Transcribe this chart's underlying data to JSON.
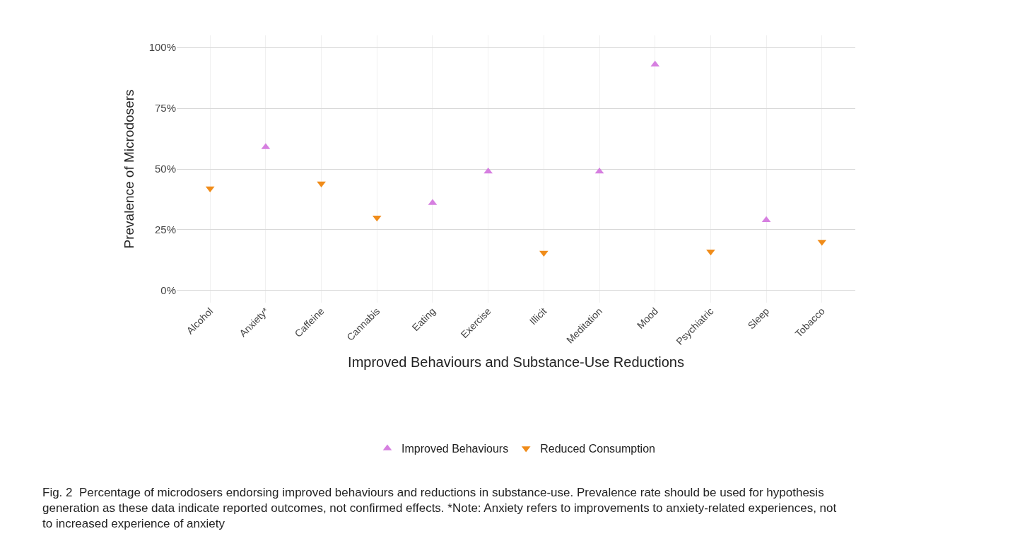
{
  "chart_data": {
    "type": "scatter",
    "xlabel": "Improved Behaviours and Substance-Use Reductions",
    "ylabel": "Prevalence of Microdosers",
    "categories": [
      "Alcohol",
      "Anxiety*",
      "Caffeine",
      "Cannabis",
      "Eating",
      "Exercise",
      "Illicit",
      "Meditation",
      "Mood",
      "Psychiatric",
      "Sleep",
      "Tobacco"
    ],
    "series": [
      {
        "name": "Improved Behaviours",
        "color": "#d67fe0",
        "marker": "triangle",
        "values": [
          null,
          59,
          null,
          null,
          36,
          49,
          null,
          49,
          93,
          null,
          29,
          null
        ]
      },
      {
        "name": "Reduced Consumption",
        "color": "#f08c1a",
        "marker": "triangle-down",
        "values": [
          42,
          null,
          44,
          30,
          null,
          null,
          15.5,
          null,
          null,
          16,
          null,
          20
        ]
      }
    ],
    "ylim": [
      -5,
      105
    ],
    "yticks": [
      {
        "value": 0,
        "label": "0%"
      },
      {
        "value": 25,
        "label": "25%"
      },
      {
        "value": 50,
        "label": "50%"
      },
      {
        "value": 75,
        "label": "75%"
      },
      {
        "value": 100,
        "label": "100%"
      }
    ],
    "grid": true,
    "legend": "bottom",
    "annotations": [
      "Fig. 2  Percentage of microdosers endorsing improved behaviours and reductions in substance-use. Prevalence rate should be used for hypothesis generation as these data indicate reported outcomes, not confirmed effects. *Note: Anxiety refers to improvements to anxiety-related experiences, not to increased experience of anxiety"
    ]
  }
}
